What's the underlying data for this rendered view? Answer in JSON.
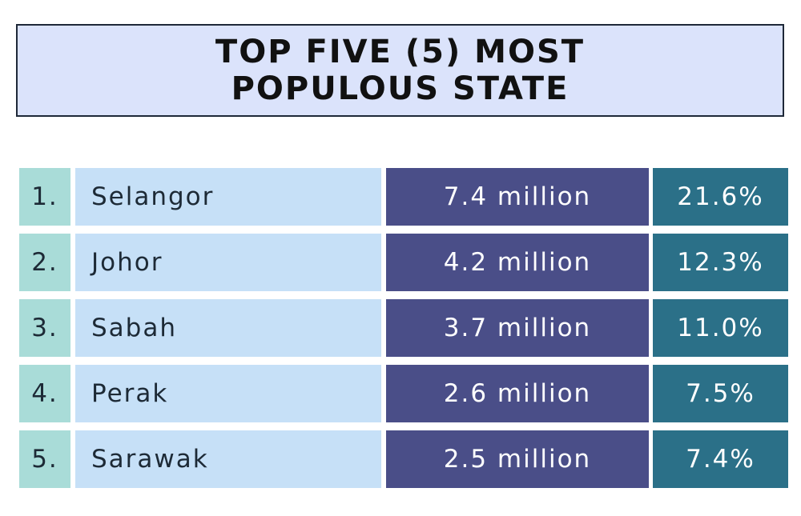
{
  "header": {
    "title_lines": [
      "TOP FIVE (5) MOST",
      "POPULOUS STATE"
    ]
  },
  "table": {
    "rows": [
      [
        "1.",
        "Selangor",
        "7.4 million",
        "21.6%"
      ],
      [
        "2.",
        "Johor",
        "4.2 million",
        "12.3%"
      ],
      [
        "3.",
        "Sabah",
        "3.7 million",
        "11.0%"
      ],
      [
        "4.",
        "Perak",
        "2.6 million",
        "7.5%"
      ],
      [
        "5.",
        "Sarawak",
        "2.5 million",
        "7.4%"
      ]
    ]
  }
}
